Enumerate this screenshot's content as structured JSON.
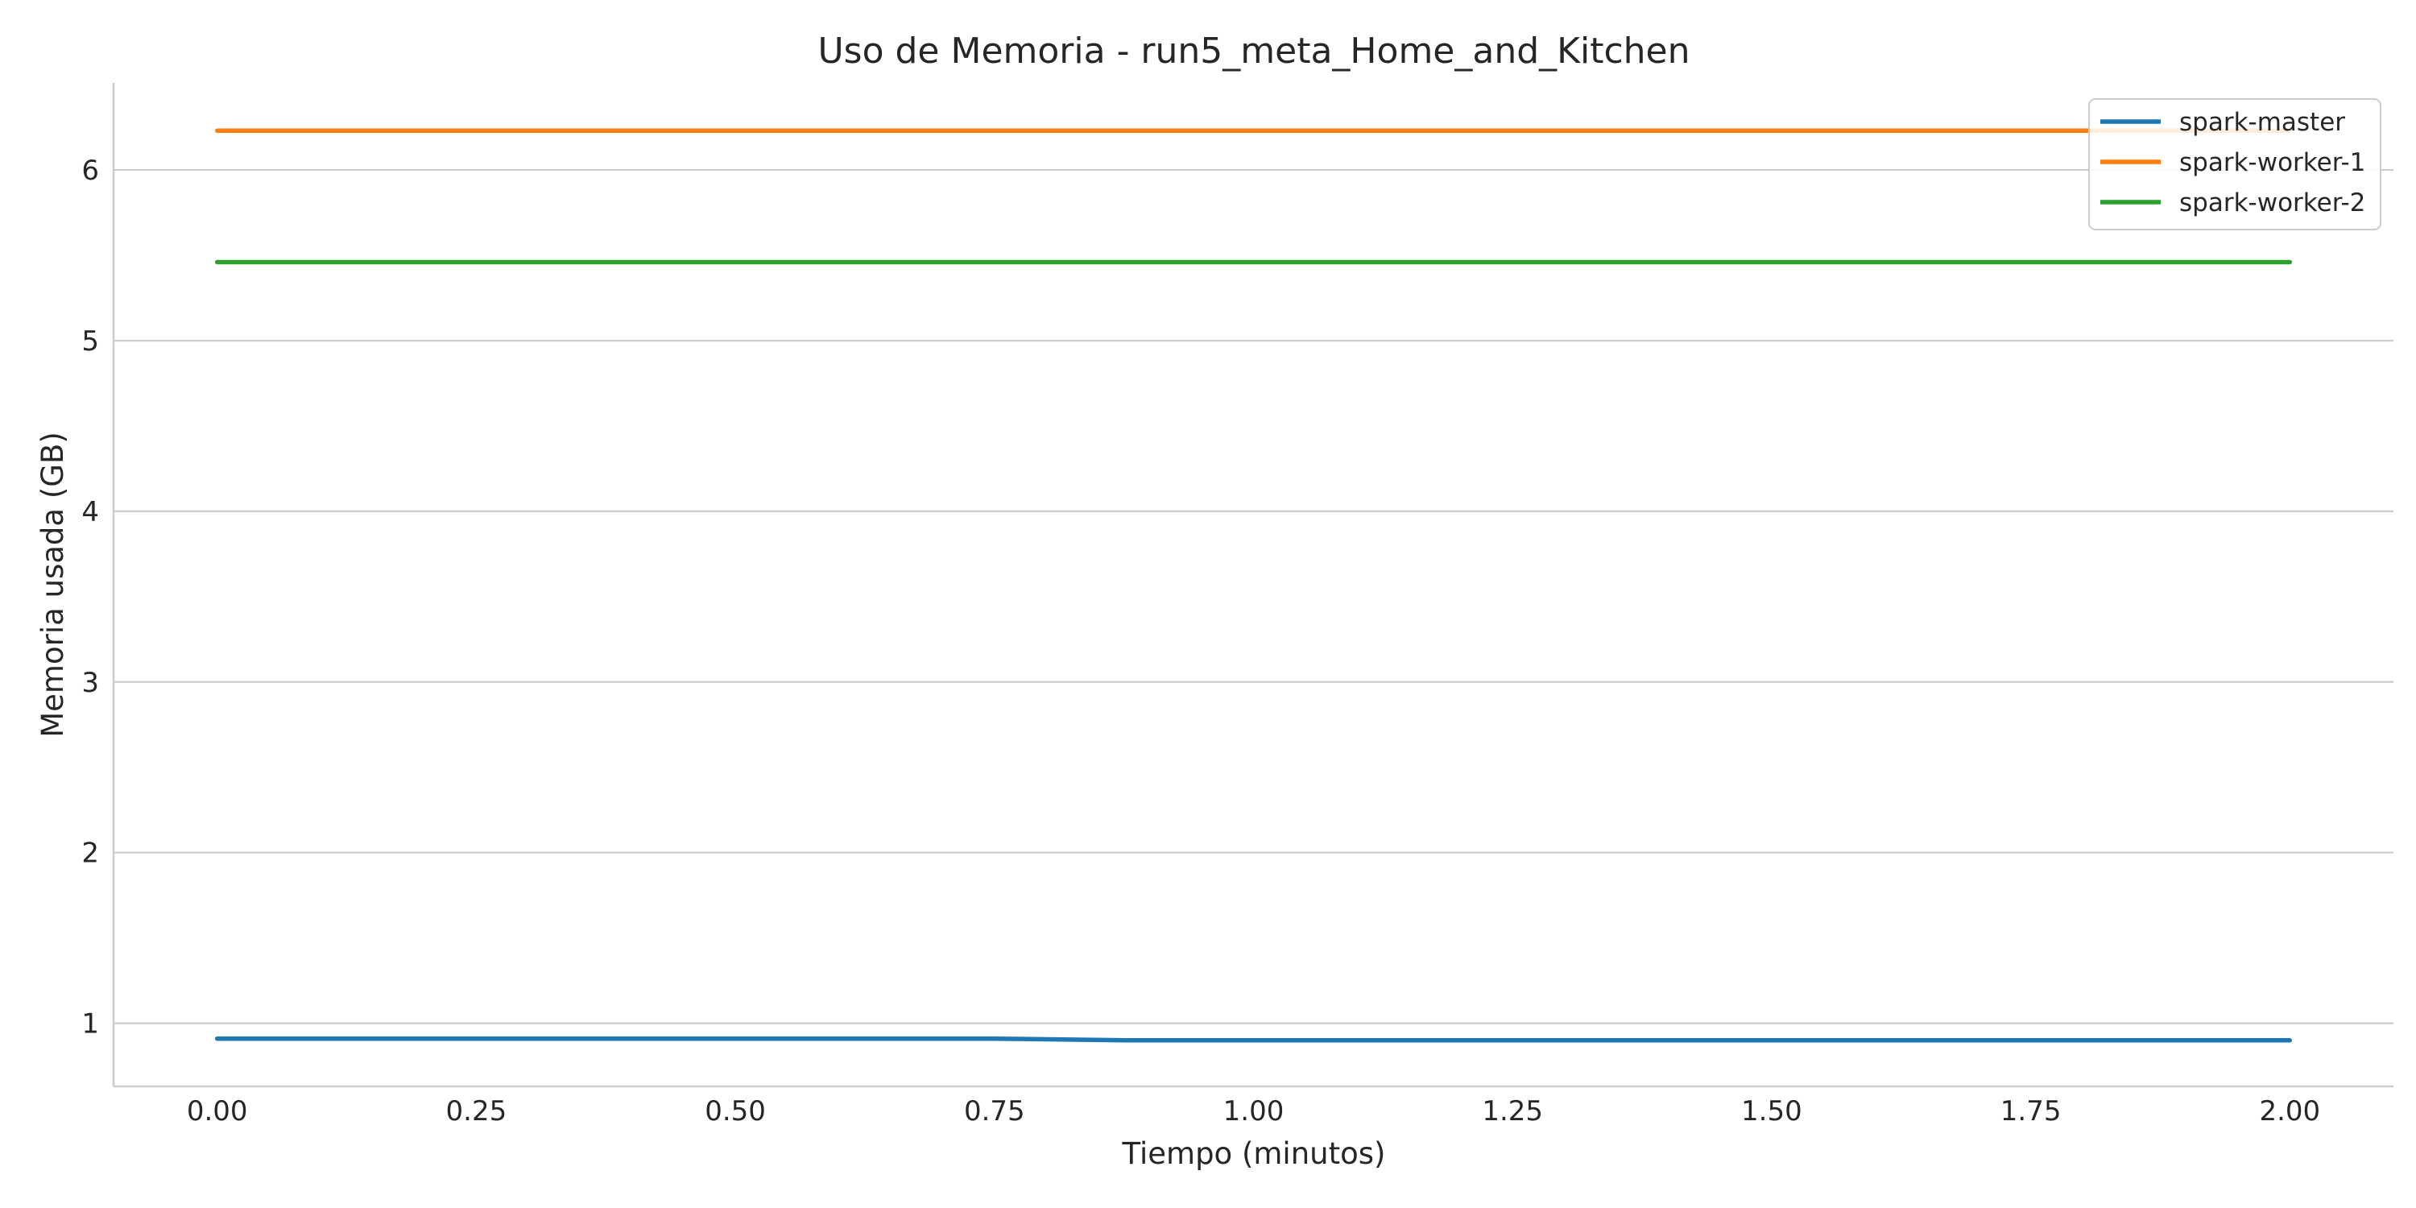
{
  "chart_data": {
    "type": "line",
    "title": "Uso de Memoria - run5_meta_Home_and_Kitchen",
    "xlabel": "Tiempo (minutos)",
    "ylabel": "Memoria usada (GB)",
    "xlim": [
      -0.1,
      2.1
    ],
    "ylim": [
      0.63,
      6.51
    ],
    "x_ticks": [
      0.0,
      0.25,
      0.5,
      0.75,
      1.0,
      1.25,
      1.5,
      1.75,
      2.0
    ],
    "x_tick_labels": [
      "0.00",
      "0.25",
      "0.50",
      "0.75",
      "1.00",
      "1.25",
      "1.50",
      "1.75",
      "2.00"
    ],
    "y_ticks": [
      1,
      2,
      3,
      4,
      5,
      6
    ],
    "y_tick_labels": [
      "1",
      "2",
      "3",
      "4",
      "5",
      "6"
    ],
    "grid": "horizontal",
    "legend_position": "top-right",
    "series": [
      {
        "name": "spark-master",
        "color": "#1f77b4",
        "x": [
          0.0,
          0.25,
          0.5,
          0.75,
          0.88,
          1.0,
          1.25,
          1.5,
          1.75,
          2.0
        ],
        "y": [
          0.91,
          0.91,
          0.91,
          0.91,
          0.9,
          0.9,
          0.9,
          0.9,
          0.9,
          0.9
        ]
      },
      {
        "name": "spark-worker-1",
        "color": "#ff7f0e",
        "x": [
          0.0,
          0.25,
          0.5,
          0.75,
          1.0,
          1.25,
          1.5,
          1.75,
          2.0
        ],
        "y": [
          6.23,
          6.23,
          6.23,
          6.23,
          6.23,
          6.23,
          6.23,
          6.23,
          6.23
        ]
      },
      {
        "name": "spark-worker-2",
        "color": "#2ca02c",
        "x": [
          0.0,
          0.25,
          0.5,
          0.75,
          1.0,
          1.25,
          1.5,
          1.75,
          2.0
        ],
        "y": [
          5.46,
          5.46,
          5.46,
          5.46,
          5.46,
          5.46,
          5.46,
          5.46,
          5.46
        ]
      }
    ]
  }
}
